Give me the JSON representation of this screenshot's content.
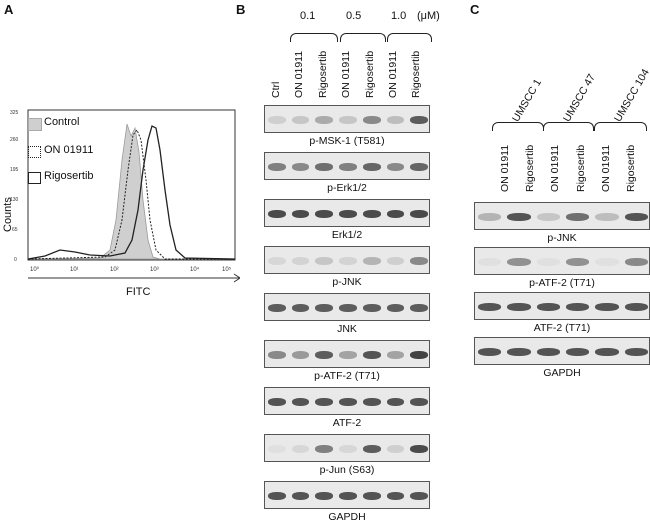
{
  "panels": {
    "a": "A",
    "b": "B",
    "c": "C"
  },
  "panel_a": {
    "legend": [
      "Control",
      "ON 01911",
      "Rigosertib"
    ],
    "ylabel": "Counts",
    "xlabel": "FITC",
    "yticks": [
      "0",
      "65",
      "130",
      "195",
      "260",
      "325"
    ],
    "xticks": [
      "10⁰",
      "10¹",
      "10²",
      "10³",
      "10⁴",
      "10⁵"
    ]
  },
  "panel_b": {
    "doses": [
      "0.1",
      "0.5",
      "1.0",
      "(μM)"
    ],
    "lanes": [
      "Ctrl",
      "ON 01911",
      "Rigosertib",
      "ON 01911",
      "Rigosertib",
      "ON 01911",
      "Rigosertib"
    ],
    "blots": [
      {
        "label": "p-MSK-1 (T581)",
        "intensity": [
          0.15,
          0.2,
          0.35,
          0.2,
          0.55,
          0.25,
          0.8
        ]
      },
      {
        "label": "p-Erk1/2",
        "intensity": [
          0.6,
          0.55,
          0.7,
          0.6,
          0.75,
          0.55,
          0.75
        ]
      },
      {
        "label": "Erk1/2",
        "intensity": [
          0.9,
          0.9,
          0.9,
          0.9,
          0.9,
          0.9,
          0.9
        ]
      },
      {
        "label": "p-JNK",
        "intensity": [
          0.1,
          0.12,
          0.2,
          0.12,
          0.3,
          0.15,
          0.55
        ]
      },
      {
        "label": "JNK",
        "intensity": [
          0.8,
          0.8,
          0.8,
          0.8,
          0.8,
          0.8,
          0.8
        ]
      },
      {
        "label": "p-ATF-2 (T71)",
        "intensity": [
          0.55,
          0.45,
          0.8,
          0.4,
          0.85,
          0.4,
          0.95
        ]
      },
      {
        "label": "ATF-2",
        "intensity": [
          0.85,
          0.85,
          0.85,
          0.85,
          0.85,
          0.85,
          0.85
        ]
      },
      {
        "label": "p-Jun (S63)",
        "intensity": [
          0.05,
          0.1,
          0.6,
          0.1,
          0.8,
          0.15,
          0.9
        ]
      },
      {
        "label": "GAPDH",
        "intensity": [
          0.85,
          0.85,
          0.85,
          0.85,
          0.85,
          0.85,
          0.85
        ]
      }
    ]
  },
  "panel_c": {
    "cell_lines": [
      "UMSCC 1",
      "UMSCC 47",
      "UMSCC 104"
    ],
    "lanes": [
      "ON 01911",
      "Rigosertib",
      "ON 01911",
      "Rigosertib",
      "ON 01911",
      "Rigosertib"
    ],
    "blots": [
      {
        "label": "p-JNK",
        "intensity": [
          0.3,
          0.85,
          0.2,
          0.7,
          0.25,
          0.85
        ]
      },
      {
        "label": "p-ATF-2 (T71)",
        "intensity": [
          0.05,
          0.5,
          0.05,
          0.5,
          0.05,
          0.55
        ]
      },
      {
        "label": "ATF-2 (T71)",
        "intensity": [
          0.85,
          0.85,
          0.85,
          0.85,
          0.85,
          0.85
        ]
      },
      {
        "label": "GAPDH",
        "intensity": [
          0.85,
          0.85,
          0.85,
          0.85,
          0.85,
          0.85
        ]
      }
    ]
  }
}
